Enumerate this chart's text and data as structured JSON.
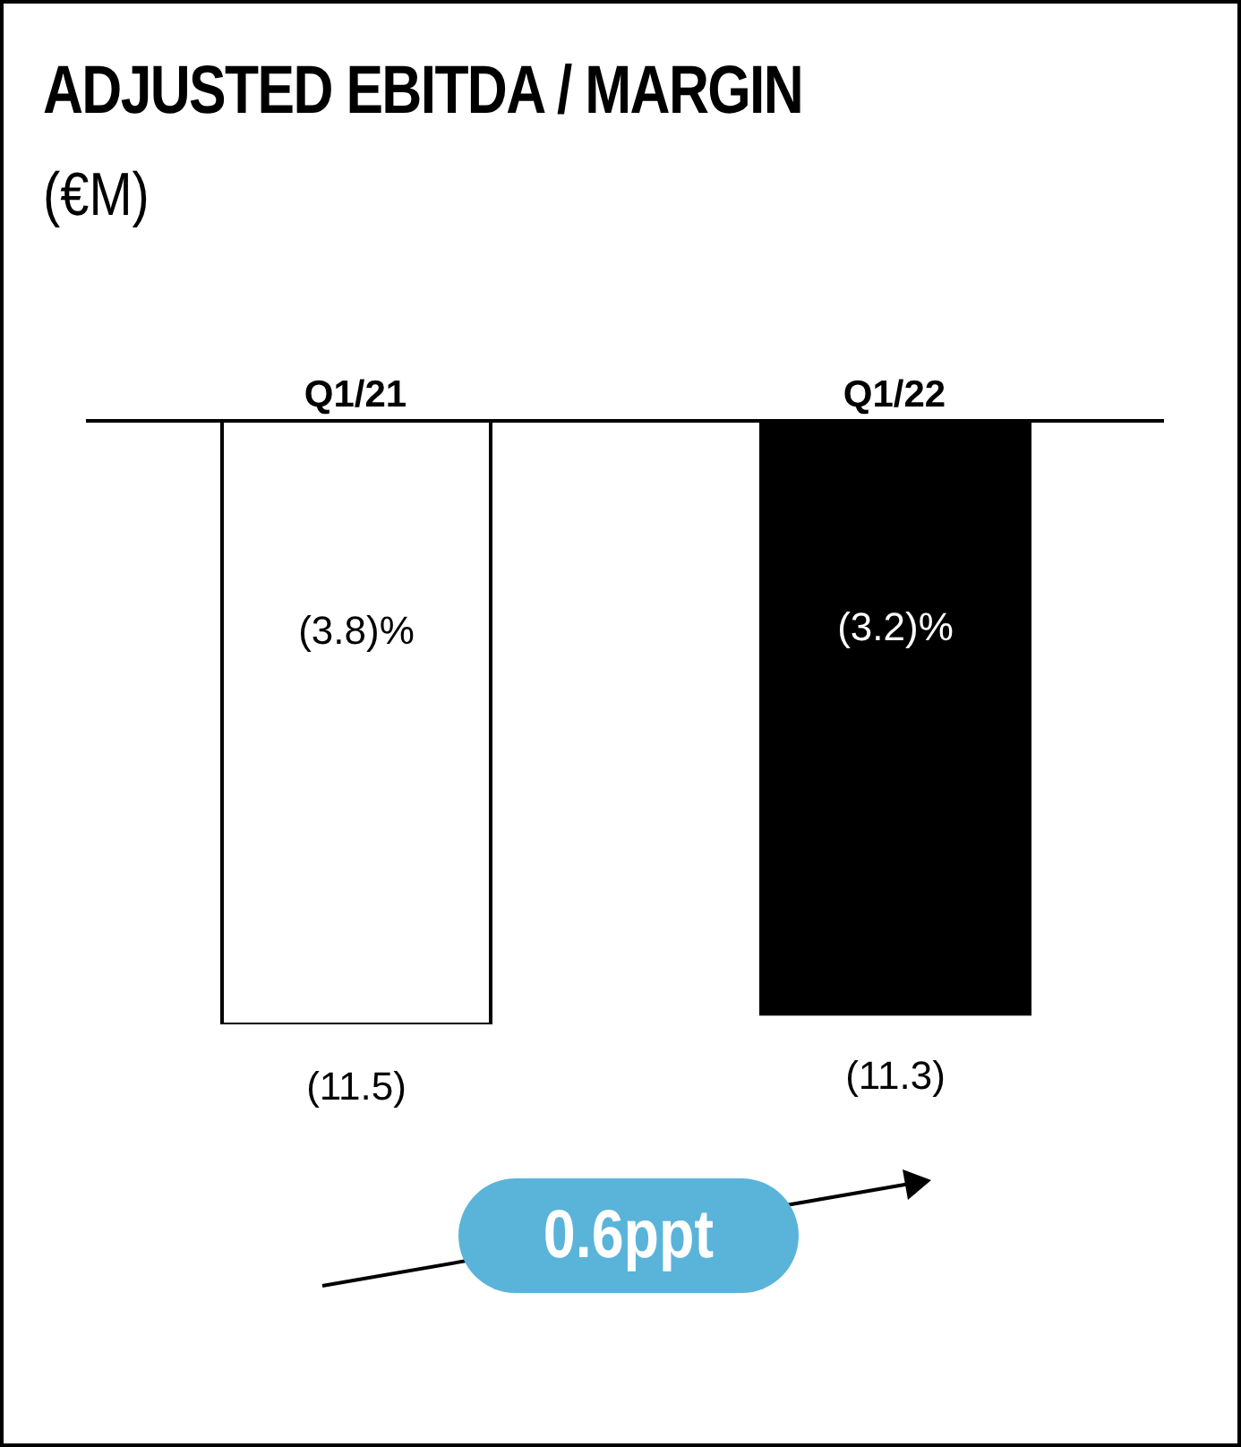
{
  "chart_data": {
    "type": "bar",
    "title": "ADJUSTED EBITDA / MARGIN",
    "subtitle": "(€M)",
    "categories": [
      "Q1/21",
      "Q1/22"
    ],
    "values": [
      -11.5,
      -11.3
    ],
    "colors": [
      "#ffffff",
      "#000000"
    ],
    "value_labels": [
      "(11.5)",
      "(11.3)"
    ],
    "annotations": [
      "(3.8)%",
      "(3.2)%",
      "0.6ppt"
    ]
  }
}
